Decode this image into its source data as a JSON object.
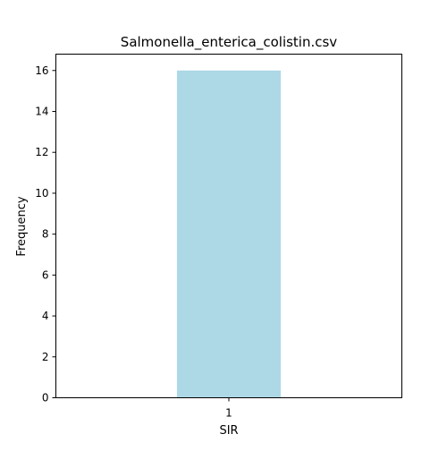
{
  "chart_data": {
    "type": "bar",
    "title": "Salmonella_enterica_colistin.csv",
    "xlabel": "SIR",
    "ylabel": "Frequency",
    "categories": [
      "1"
    ],
    "values": [
      16
    ],
    "ylim": [
      0,
      16.8
    ],
    "yticks": [
      0,
      2,
      4,
      6,
      8,
      10,
      12,
      14,
      16
    ],
    "bar_color": "#add8e6",
    "grid": false,
    "legend": "none"
  }
}
